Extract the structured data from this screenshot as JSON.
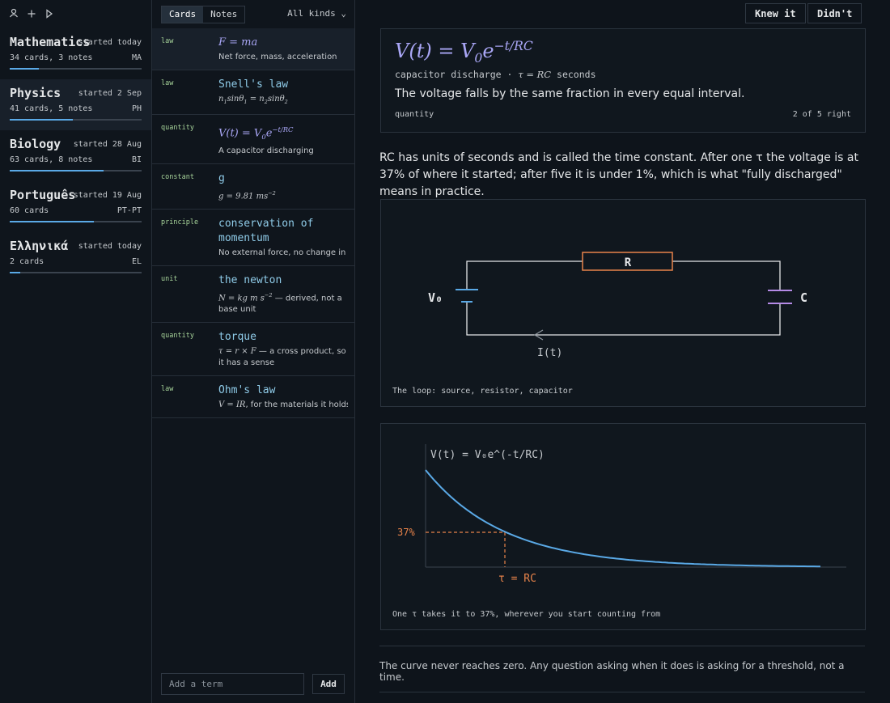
{
  "decks": [
    {
      "name": "Mathematics",
      "started": "started today",
      "count": "34 cards, 3 notes",
      "code": "MA",
      "progress": 0.22
    },
    {
      "name": "Physics",
      "started": "started 2 Sep",
      "count": "41 cards, 5 notes",
      "code": "PH",
      "progress": 0.48
    },
    {
      "name": "Biology",
      "started": "started 28 Aug",
      "count": "63 cards, 8 notes",
      "code": "BI",
      "progress": 0.71
    },
    {
      "name": "Português",
      "started": "started 19 Aug",
      "count": "60 cards",
      "code": "PT-PT",
      "progress": 0.64
    },
    {
      "name": "Ελληνικά",
      "started": "started today",
      "count": "2 cards",
      "code": "EL",
      "progress": 0.08
    }
  ],
  "active_deck": 1,
  "tabs": [
    "Cards",
    "Notes"
  ],
  "active_tab": 0,
  "filter": "All kinds",
  "cards": [
    {
      "kind": "law",
      "term": [
        {
          "m": "F = ma"
        }
      ],
      "desc": [
        {
          "t": "Net force, mass, acceleration"
        }
      ]
    },
    {
      "kind": "law",
      "term": "Snell's law",
      "desc": [
        {
          "m": "n"
        },
        {
          "sub": "1"
        },
        {
          "m": "sinθ"
        },
        {
          "sub": "1"
        },
        {
          "m": " = n"
        },
        {
          "sub": "2"
        },
        {
          "m": "sinθ"
        },
        {
          "sub": "2"
        }
      ]
    },
    {
      "kind": "quantity",
      "term": [
        {
          "m": "V(t) = V"
        },
        {
          "sub": "0"
        },
        {
          "m": "e"
        },
        {
          "sup": "−t/RC"
        }
      ],
      "desc": [
        {
          "t": "A capacitor discharging"
        }
      ]
    },
    {
      "kind": "constant",
      "term": "g",
      "desc": [
        {
          "m": "g = 9.81 ms"
        },
        {
          "sup": "−2"
        }
      ]
    },
    {
      "kind": "principle",
      "term": "conservation of momentum",
      "desc": [
        {
          "t": "No external force, no change in p"
        }
      ]
    },
    {
      "kind": "unit",
      "term": "the newton",
      "desc": [
        {
          "m": "N = kg m s"
        },
        {
          "sup": "−2"
        },
        {
          "t": " — derived, not a base unit"
        }
      ]
    },
    {
      "kind": "quantity",
      "term": "torque",
      "desc": [
        {
          "m": "τ = r × F"
        },
        {
          "t": " — a cross product, so it has a sense"
        }
      ]
    },
    {
      "kind": "law",
      "term": "Ohm's law",
      "desc": [
        {
          "m": "V = IR"
        },
        {
          "t": ", for the materials it holds in"
        }
      ]
    }
  ],
  "selected_card": 0,
  "add_placeholder": "Add a term",
  "add_button": "Add",
  "review": {
    "buttons": [
      "Knew it",
      "Didn't"
    ],
    "formula": [
      {
        "m": "V(t) = V"
      },
      {
        "sub": "0"
      },
      {
        "m": "e"
      },
      {
        "sup": "−t/RC"
      }
    ],
    "subtitle": [
      {
        "t": "capacitor discharge · "
      },
      {
        "m": "τ = RC"
      },
      {
        "t": " seconds"
      }
    ],
    "explanation": "The voltage falls by the same fraction in every equal interval.",
    "kind": "quantity",
    "score": "2 of 5 right",
    "paragraph": "RC has units of seconds and is called the time constant. After one τ the voltage is at 37% of where it started; after five it is under 1%, which is what \"fully discharged\" means in practice.",
    "circuit": {
      "source": "V₀",
      "resistor": "R",
      "capacitor": "C",
      "current": "I(t)",
      "caption": "The loop: source, resistor, capacitor"
    },
    "graph": {
      "equation": "V(t) = V₀e^(-t/RC)",
      "level": "37%",
      "time": "τ = RC",
      "caption": "One τ takes it to 37%, wherever you start counting from"
    },
    "footer": "The curve never reaches zero. Any question asking when it does is asking for a threshold, not a time."
  }
}
